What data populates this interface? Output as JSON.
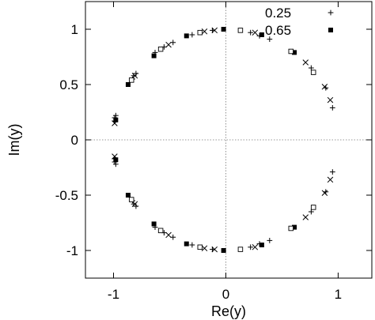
{
  "chart_data": {
    "type": "scatter",
    "title": "",
    "xlabel": "Re(y)",
    "ylabel": "Im(y)",
    "xlim": [
      -1.25,
      1.3
    ],
    "ylim": [
      -1.25,
      1.25
    ],
    "xticks": [
      {
        "value": -1,
        "label": "-1"
      },
      {
        "value": 0,
        "label": "0"
      },
      {
        "value": 1,
        "label": "1"
      }
    ],
    "yticks": [
      {
        "value": 1,
        "label": "1"
      },
      {
        "value": 0.5,
        "label": "0.5"
      },
      {
        "value": 0,
        "label": "0"
      },
      {
        "value": -0.5,
        "label": "-0.5"
      },
      {
        "value": -1,
        "label": "-1"
      }
    ],
    "zero_lines": true,
    "grid": false,
    "legend_position": "top-right",
    "series": [
      {
        "name": "0.25",
        "marker": "plus",
        "points": [
          [
            0.95,
            0.29
          ],
          [
            0.89,
            0.47
          ],
          [
            0.76,
            0.65
          ],
          [
            0.39,
            0.91
          ],
          [
            0.3,
            0.94
          ],
          [
            0.22,
            0.97
          ],
          [
            -0.12,
            0.99
          ],
          [
            -0.3,
            0.95
          ],
          [
            -0.47,
            0.88
          ],
          [
            -0.55,
            0.84
          ],
          [
            -0.63,
            0.79
          ],
          [
            -0.8,
            0.6
          ],
          [
            -0.82,
            0.58
          ],
          [
            -0.83,
            0.55
          ],
          [
            -0.98,
            0.22
          ],
          [
            -0.99,
            0.2
          ],
          [
            -0.99,
            0.17
          ],
          [
            0.95,
            -0.29
          ],
          [
            0.89,
            -0.47
          ],
          [
            0.76,
            -0.65
          ],
          [
            0.39,
            -0.91
          ],
          [
            0.3,
            -0.94
          ],
          [
            0.22,
            -0.97
          ],
          [
            -0.12,
            -0.99
          ],
          [
            -0.3,
            -0.95
          ],
          [
            -0.47,
            -0.88
          ],
          [
            -0.55,
            -0.84
          ],
          [
            -0.63,
            -0.79
          ],
          [
            -0.8,
            -0.6
          ],
          [
            -0.82,
            -0.58
          ],
          [
            -0.83,
            -0.55
          ],
          [
            -0.98,
            -0.22
          ],
          [
            -0.99,
            -0.2
          ],
          [
            -0.99,
            -0.17
          ]
        ]
      },
      {
        "name": "0.65",
        "marker": "filled-square",
        "points": [
          [
            0.61,
            0.79
          ],
          [
            0.32,
            0.95
          ],
          [
            -0.02,
            1.0
          ],
          [
            -0.35,
            0.94
          ],
          [
            -0.64,
            0.76
          ],
          [
            -0.87,
            0.5
          ],
          [
            -0.98,
            0.18
          ],
          [
            0.61,
            -0.79
          ],
          [
            0.32,
            -0.95
          ],
          [
            -0.02,
            -1.0
          ],
          [
            -0.35,
            -0.94
          ],
          [
            -0.64,
            -0.76
          ],
          [
            -0.87,
            -0.5
          ],
          [
            -0.98,
            -0.18
          ]
        ]
      },
      {
        "name": "",
        "marker": "cross",
        "points": [
          [
            0.93,
            0.36
          ],
          [
            0.88,
            0.48
          ],
          [
            0.71,
            0.7
          ],
          [
            0.26,
            0.97
          ],
          [
            -0.1,
            0.99
          ],
          [
            -0.19,
            0.98
          ],
          [
            -0.51,
            0.86
          ],
          [
            -0.81,
            0.58
          ],
          [
            -0.99,
            0.15
          ],
          [
            0.93,
            -0.36
          ],
          [
            0.88,
            -0.48
          ],
          [
            0.71,
            -0.7
          ],
          [
            0.26,
            -0.97
          ],
          [
            -0.1,
            -0.99
          ],
          [
            -0.19,
            -0.98
          ],
          [
            -0.51,
            -0.86
          ],
          [
            -0.81,
            -0.58
          ],
          [
            -0.99,
            -0.15
          ]
        ]
      },
      {
        "name": "",
        "marker": "open-square",
        "points": [
          [
            0.78,
            0.61
          ],
          [
            0.58,
            0.8
          ],
          [
            0.13,
            0.99
          ],
          [
            -0.23,
            0.97
          ],
          [
            -0.58,
            0.82
          ],
          [
            -0.84,
            0.54
          ],
          [
            0.78,
            -0.61
          ],
          [
            0.58,
            -0.8
          ],
          [
            0.13,
            -0.99
          ],
          [
            -0.23,
            -0.97
          ],
          [
            -0.58,
            -0.82
          ],
          [
            -0.84,
            -0.54
          ]
        ]
      }
    ]
  }
}
